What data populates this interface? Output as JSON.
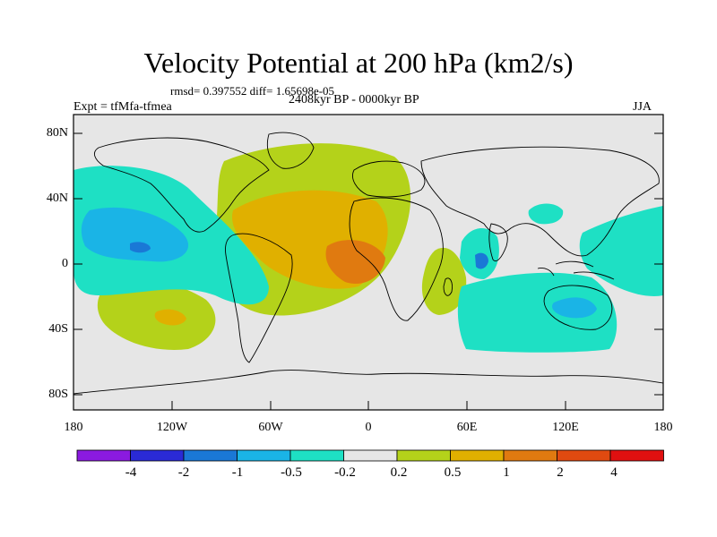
{
  "title": "Velocity Potential at 200 hPa (km2/s)",
  "stats": "rmsd= 0.397552 diff= 1.65698e-05",
  "experiment": "Expt = tfMfa-tfmea",
  "period": "2408kyr BP - 0000kyr BP",
  "season": "JJA",
  "lat_ticks": [
    "80N",
    "40N",
    "0",
    "40S",
    "80S"
  ],
  "lon_ticks": [
    "180",
    "120W",
    "60W",
    "0",
    "60E",
    "120E",
    "180"
  ],
  "colorbar": {
    "labels": [
      "-4",
      "-2",
      "-1",
      "-0.5",
      "-0.2",
      "0.2",
      "0.5",
      "1",
      "2",
      "4"
    ],
    "colors": [
      "#8b1ae0",
      "#2a2ad6",
      "#1a78d6",
      "#1ab4e6",
      "#1ee0c4",
      "#e6e6e6",
      "#b4d21a",
      "#e0b000",
      "#e07a10",
      "#e04a10",
      "#e01010"
    ]
  },
  "map_colors": {
    "land_bg": "#e6e6e6",
    "pos_small": "#b4d21a",
    "pos_mid": "#e0b000",
    "pos_high": "#e07a10",
    "neg_small": "#1ee0c4",
    "neg_mid": "#1ab4e6",
    "neg_high": "#1a78d6"
  }
}
